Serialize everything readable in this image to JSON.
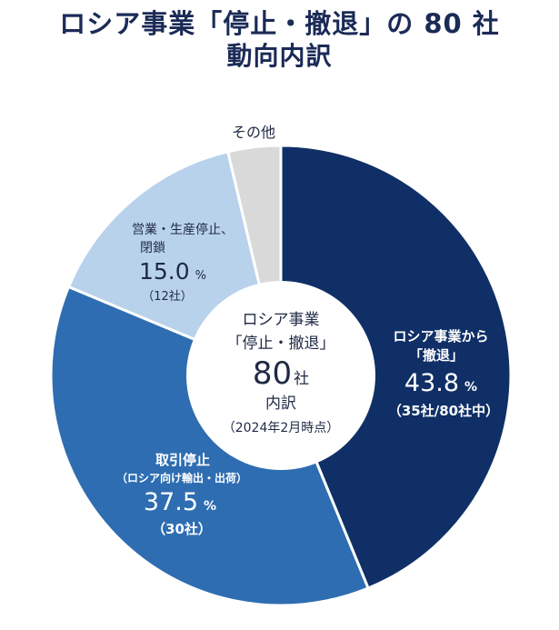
{
  "title": {
    "line1": "ロシア事業「停止・撤退」の 80 社",
    "line2": "動向内訳"
  },
  "colors": {
    "withdrawal": "#0f2f66",
    "trade_stop": "#2f6db2",
    "suspend": "#b8d2ec",
    "other": "#d9d9d9",
    "title": "#1b2b57"
  },
  "center": {
    "line1": "ロシア事業",
    "line2": "「停止・撤退」",
    "count_number": "80",
    "count_unit": "社",
    "line4": "内訳",
    "line5": "（2024年2月時点）"
  },
  "slice_labels": {
    "withdrawal": {
      "title1": "ロシア事業から",
      "title2": "「撤退」",
      "percent_num": "43.8",
      "percent_sym": "%",
      "count": "（35社/80社中）"
    },
    "trade_stop": {
      "title1": "取引停止",
      "title2": "（ロシア向け輸出・出荷）",
      "percent_num": "37.5",
      "percent_sym": "%",
      "count": "（30社）"
    },
    "suspend": {
      "title1": "営業・生産停止、",
      "title2": "閉鎖",
      "percent_num": "15.0",
      "percent_sym": "%",
      "count": "（12社）"
    },
    "other": {
      "title1": "その他"
    }
  },
  "chart_data": {
    "type": "pie",
    "title": "ロシア事業「停止・撤退」の 80 社 動向内訳",
    "total": 80,
    "unit": "社",
    "as_of": "2024年2月時点",
    "slices": [
      {
        "key": "withdrawal",
        "label": "ロシア事業から「撤退」",
        "percent": 43.8,
        "count": 35
      },
      {
        "key": "trade_stop",
        "label": "取引停止（ロシア向け輸出・出荷）",
        "percent": 37.5,
        "count": 30
      },
      {
        "key": "suspend",
        "label": "営業・生産停止、閉鎖",
        "percent": 15.0,
        "count": 12
      },
      {
        "key": "other",
        "label": "その他",
        "percent": 3.7,
        "count": 3
      }
    ]
  }
}
